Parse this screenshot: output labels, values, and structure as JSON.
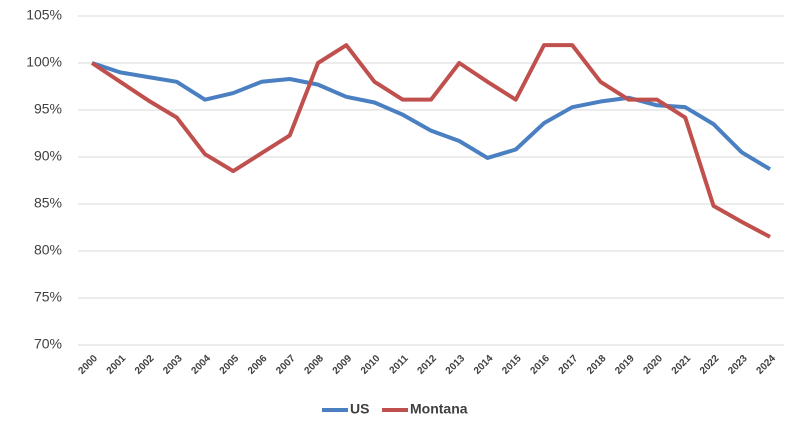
{
  "chart_data": {
    "type": "line",
    "categories": [
      "2000",
      "2001",
      "2002",
      "2003",
      "2004",
      "2005",
      "2006",
      "2007",
      "2008",
      "2009",
      "2010",
      "2011",
      "2012",
      "2013",
      "2014",
      "2015",
      "2016",
      "2017",
      "2018",
      "2019",
      "2020",
      "2021",
      "2022",
      "2023",
      "2024"
    ],
    "series": [
      {
        "name": "US",
        "color": "#4a7fc1",
        "values": [
          100,
          99,
          98.5,
          98,
          96.1,
          96.8,
          98,
          98.3,
          97.7,
          96.4,
          95.8,
          94.5,
          92.8,
          91.7,
          89.9,
          90.8,
          93.6,
          95.3,
          95.9,
          96.3,
          95.5,
          95.3,
          93.5,
          90.5,
          88.7
        ]
      },
      {
        "name": "Montana",
        "color": "#c0504d",
        "values": [
          100,
          98,
          96,
          94.2,
          90.3,
          88.5,
          90.4,
          92.3,
          100,
          101.9,
          98,
          96.1,
          96.1,
          100,
          98,
          96.1,
          101.9,
          101.9,
          98,
          96.1,
          96.1,
          94.2,
          84.8,
          83.1,
          81.5
        ]
      }
    ],
    "ylim": [
      70,
      105
    ],
    "yticks": [
      {
        "value": 70,
        "label": "70%"
      },
      {
        "value": 75,
        "label": "75%"
      },
      {
        "value": 80,
        "label": "80%"
      },
      {
        "value": 85,
        "label": "85%"
      },
      {
        "value": 90,
        "label": "90%"
      },
      {
        "value": 95,
        "label": "95%"
      },
      {
        "value": 100,
        "label": "100%"
      },
      {
        "value": 105,
        "label": "105%"
      }
    ],
    "grid": true
  }
}
